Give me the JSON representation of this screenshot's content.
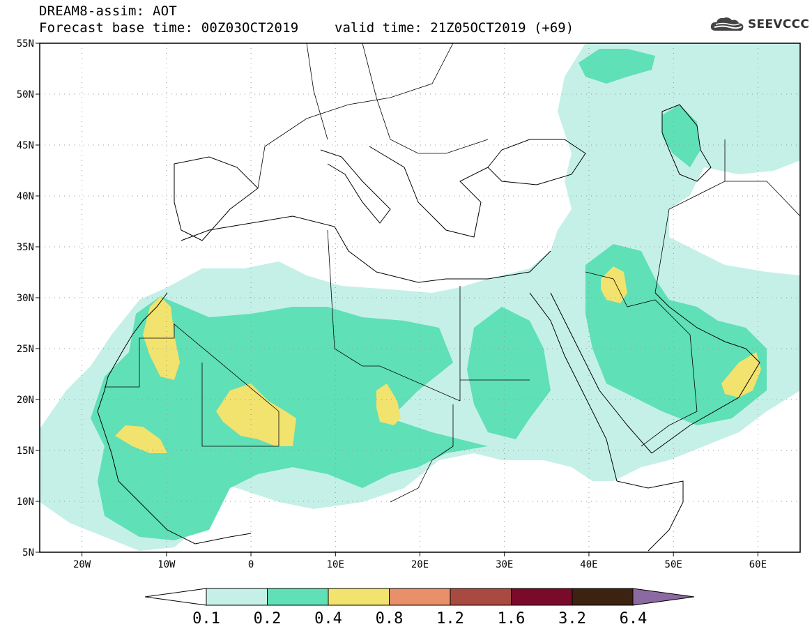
{
  "header": {
    "title": "DREAM8-assim: AOT",
    "base_time": "Forecast base time: 00Z03OCT2019",
    "valid_time": "valid time: 21Z05OCT2019 (+69)"
  },
  "logo": {
    "text": "SEEVCCC",
    "icon": "cloud-icon"
  },
  "map": {
    "lon_range": [
      -25,
      65
    ],
    "lat_range": [
      5,
      55
    ],
    "lat_ticks": [
      "55N",
      "50N",
      "45N",
      "40N",
      "35N",
      "30N",
      "25N",
      "20N",
      "15N",
      "10N",
      "5N"
    ],
    "lon_ticks": [
      "20W",
      "10W",
      "0",
      "10E",
      "20E",
      "30E",
      "40E",
      "50E",
      "60E"
    ],
    "gridlines": true
  },
  "colorbar": {
    "labels": [
      "0.1",
      "0.2",
      "0.4",
      "0.8",
      "1.2",
      "1.6",
      "3.2",
      "6.4"
    ],
    "colors": [
      "#c5f0e8",
      "#5fe0b6",
      "#f2e26e",
      "#e8906a",
      "#a84a40",
      "#7a0a2a",
      "#3c2210",
      "#8a6aa0"
    ],
    "low_color": "#ffffff"
  }
}
